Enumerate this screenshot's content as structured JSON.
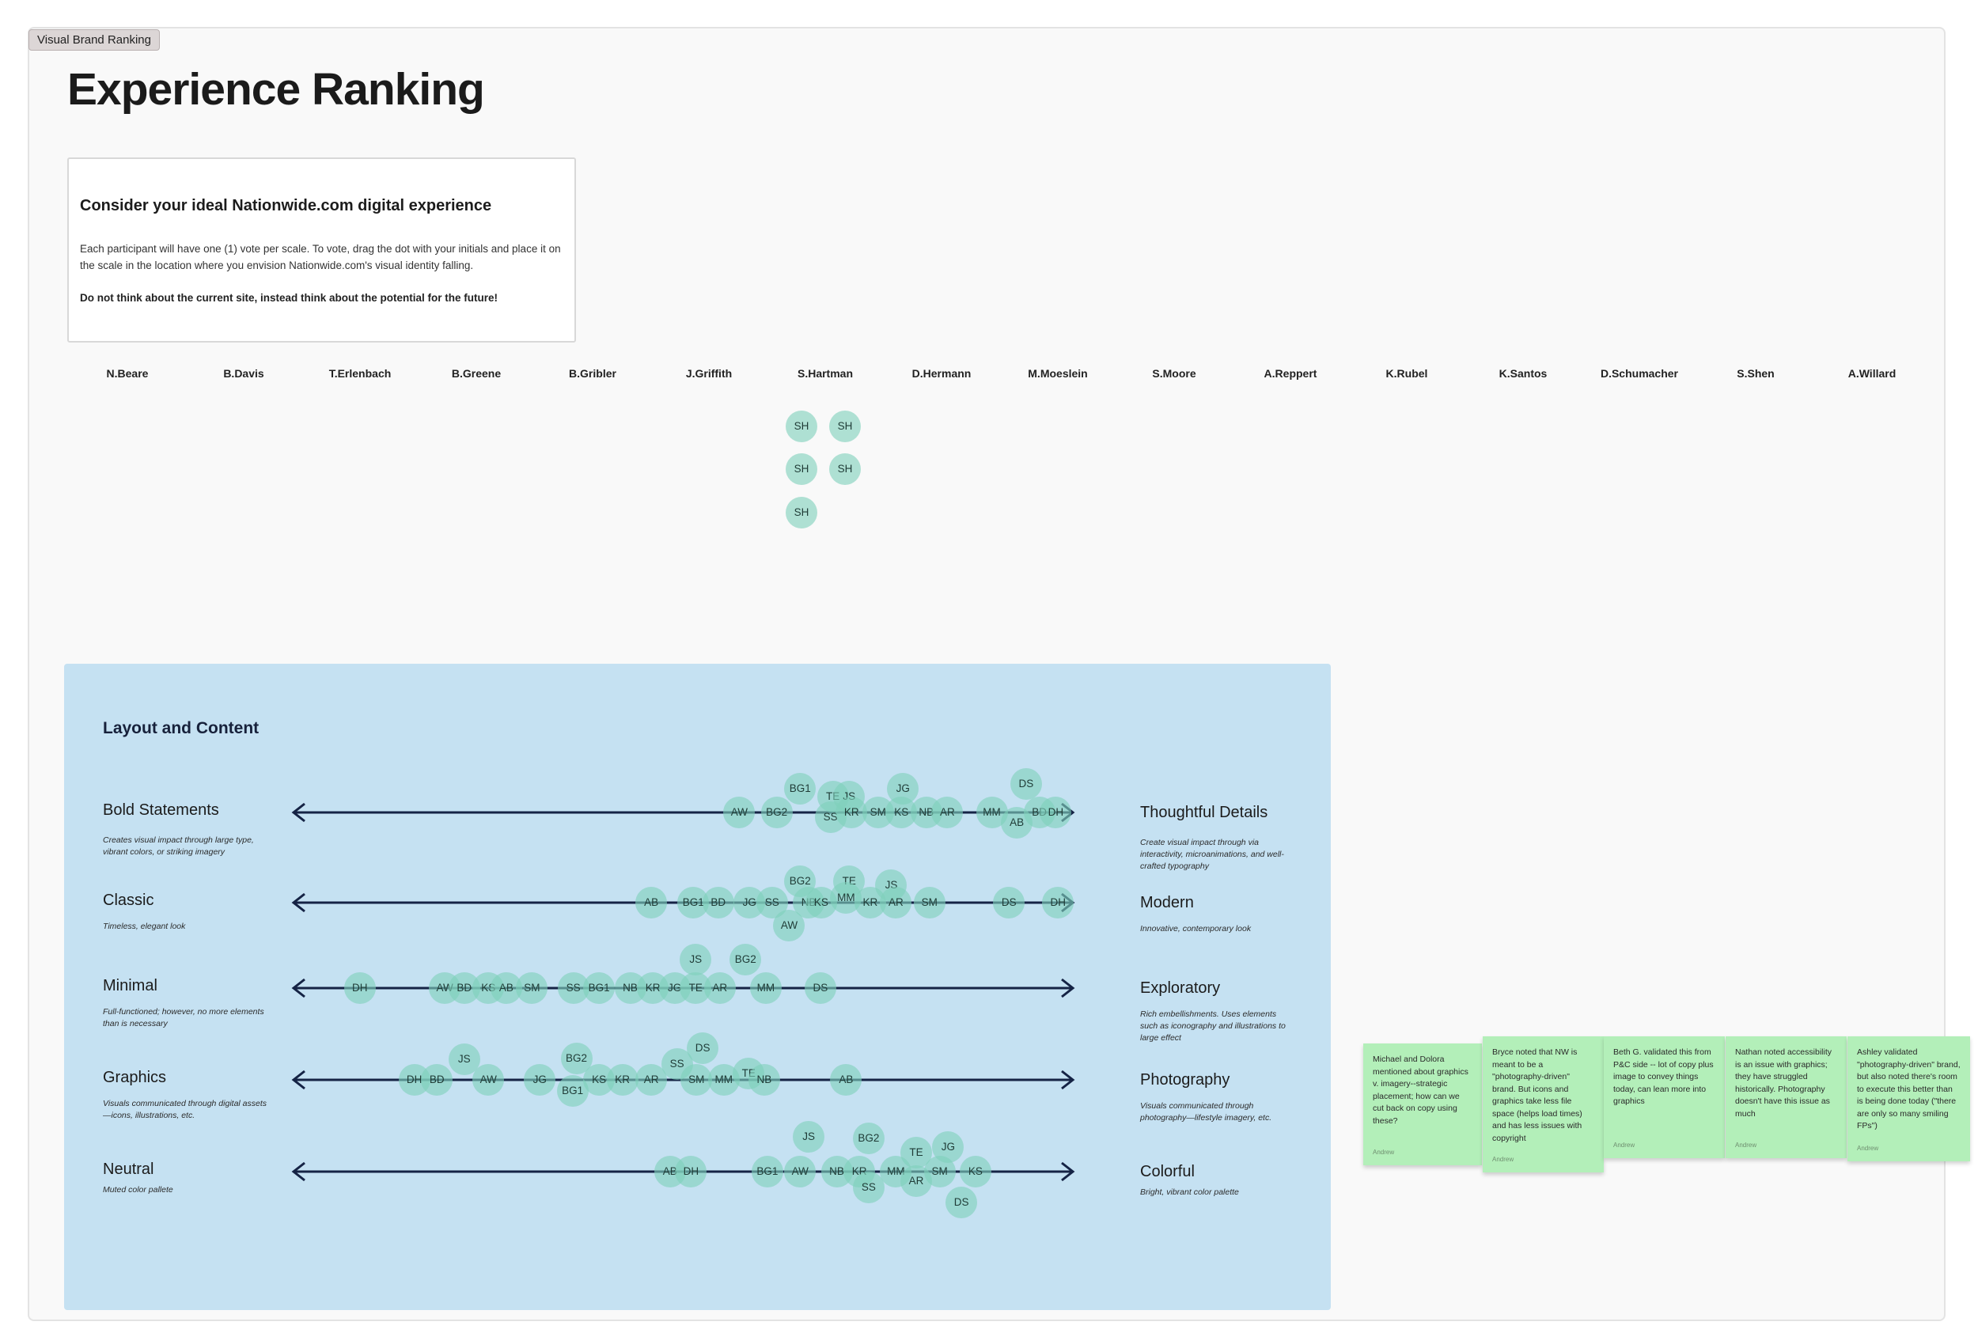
{
  "frame_label": "Visual Brand Ranking",
  "page_title": "Experience Ranking",
  "instructions": {
    "heading": "Consider your ideal Nationwide.com digital experience",
    "body": "Each participant will have one (1) vote per scale. To vote, drag the dot with your initials and place it on the scale in the location where you envision Nationwide.com's visual identity falling.",
    "note": "Do not think about the current site, instead think about the potential for the future!"
  },
  "participants": [
    "N.Beare",
    "B.Davis",
    "T.Erlenbach",
    "B.Greene",
    "B.Gribler",
    "J.Griffith",
    "S.Hartman",
    "D.Hermann",
    "M.Moeslein",
    "S.Moore",
    "A.Reppert",
    "K.Rubel",
    "K.Santos",
    "D.Schumacher",
    "S.Shen",
    "A.Willard"
  ],
  "unplaced_dots": {
    "initials": "SH",
    "count": 5
  },
  "panel": {
    "title": "Layout and Content",
    "scales": [
      {
        "left_title": "Bold Statements",
        "left_desc": "Creates visual impact through large type, vibrant colors, or striking imagery",
        "right_title": "Thoughtful Details",
        "right_desc": "Create visual impact through via interactivity, microanimations, and well-crafted typography",
        "votes": [
          {
            "initials": "AW",
            "value": 0.572
          },
          {
            "initials": "BG2",
            "value": 0.62
          },
          {
            "initials": "BG1",
            "value": 0.65
          },
          {
            "initials": "SS",
            "value": 0.689
          },
          {
            "initials": "TE",
            "value": 0.692
          },
          {
            "initials": "JS",
            "value": 0.713
          },
          {
            "initials": "KR",
            "value": 0.716
          },
          {
            "initials": "SM",
            "value": 0.75
          },
          {
            "initials": "JG",
            "value": 0.782
          },
          {
            "initials": "KS",
            "value": 0.78
          },
          {
            "initials": "NB",
            "value": 0.812
          },
          {
            "initials": "AR",
            "value": 0.839
          },
          {
            "initials": "MM",
            "value": 0.896
          },
          {
            "initials": "DS",
            "value": 0.94
          },
          {
            "initials": "AB",
            "value": 0.928
          },
          {
            "initials": "BD",
            "value": 0.957
          },
          {
            "initials": "DH",
            "value": 0.978
          }
        ]
      },
      {
        "left_title": "Classic",
        "left_desc": "Timeless, elegant look",
        "right_title": "Modern",
        "right_desc": "Innovative, contemporary look",
        "votes": [
          {
            "initials": "AB",
            "value": 0.459
          },
          {
            "initials": "BG1",
            "value": 0.513
          },
          {
            "initials": "BD",
            "value": 0.545
          },
          {
            "initials": "JG",
            "value": 0.585
          },
          {
            "initials": "SS",
            "value": 0.614
          },
          {
            "initials": "BG2",
            "value": 0.65
          },
          {
            "initials": "AW",
            "value": 0.636
          },
          {
            "initials": "NB",
            "value": 0.661
          },
          {
            "initials": "KS",
            "value": 0.677
          },
          {
            "initials": "TE",
            "value": 0.713
          },
          {
            "initials": "MM",
            "value": 0.709
          },
          {
            "initials": "KR",
            "value": 0.74
          },
          {
            "initials": "JS",
            "value": 0.767
          },
          {
            "initials": "AR",
            "value": 0.773
          },
          {
            "initials": "SM",
            "value": 0.816
          },
          {
            "initials": "DS",
            "value": 0.918
          },
          {
            "initials": "DH",
            "value": 0.981
          }
        ]
      },
      {
        "left_title": "Minimal",
        "left_desc": "Full-functioned; however, no more elements than is necessary",
        "right_title": "Exploratory",
        "right_desc": "Rich embellishments. Uses elements such as iconography and illustrations to large effect",
        "votes": [
          {
            "initials": "DH",
            "value": 0.085
          },
          {
            "initials": "AW",
            "value": 0.194
          },
          {
            "initials": "BD",
            "value": 0.219
          },
          {
            "initials": "KS",
            "value": 0.25
          },
          {
            "initials": "AB",
            "value": 0.273
          },
          {
            "initials": "SM",
            "value": 0.306
          },
          {
            "initials": "SS",
            "value": 0.359
          },
          {
            "initials": "BG1",
            "value": 0.392
          },
          {
            "initials": "NB",
            "value": 0.432
          },
          {
            "initials": "KR",
            "value": 0.461
          },
          {
            "initials": "JG",
            "value": 0.489
          },
          {
            "initials": "JS",
            "value": 0.516
          },
          {
            "initials": "TE",
            "value": 0.516
          },
          {
            "initials": "AR",
            "value": 0.547
          },
          {
            "initials": "BG2",
            "value": 0.58
          },
          {
            "initials": "MM",
            "value": 0.606
          },
          {
            "initials": "DS",
            "value": 0.676
          }
        ]
      },
      {
        "left_title": "Graphics",
        "left_desc": "Visuals communicated through digital assets—icons, illustrations, etc.",
        "right_title": "Photography",
        "right_desc": "Visuals communicated through photography—lifestyle imagery, etc.",
        "votes": [
          {
            "initials": "DH",
            "value": 0.155
          },
          {
            "initials": "BD",
            "value": 0.184
          },
          {
            "initials": "JS",
            "value": 0.219
          },
          {
            "initials": "AW",
            "value": 0.25
          },
          {
            "initials": "JG",
            "value": 0.316
          },
          {
            "initials": "BG2",
            "value": 0.363
          },
          {
            "initials": "BG1",
            "value": 0.358
          },
          {
            "initials": "KS",
            "value": 0.392
          },
          {
            "initials": "KR",
            "value": 0.422
          },
          {
            "initials": "AR",
            "value": 0.459
          },
          {
            "initials": "SS",
            "value": 0.492
          },
          {
            "initials": "DS",
            "value": 0.525
          },
          {
            "initials": "SM",
            "value": 0.517
          },
          {
            "initials": "MM",
            "value": 0.552
          },
          {
            "initials": "TE",
            "value": 0.584
          },
          {
            "initials": "NB",
            "value": 0.604
          },
          {
            "initials": "AB",
            "value": 0.709
          }
        ]
      },
      {
        "left_title": "Neutral",
        "left_desc": "Muted color pallete",
        "right_title": "Colorful",
        "right_desc": "Bright, vibrant color palette",
        "votes": [
          {
            "initials": "AB",
            "value": 0.483
          },
          {
            "initials": "DH",
            "value": 0.51
          },
          {
            "initials": "BG1",
            "value": 0.608
          },
          {
            "initials": "AW",
            "value": 0.65
          },
          {
            "initials": "JS",
            "value": 0.661
          },
          {
            "initials": "NB",
            "value": 0.697
          },
          {
            "initials": "BG2",
            "value": 0.738
          },
          {
            "initials": "KR",
            "value": 0.726
          },
          {
            "initials": "SS",
            "value": 0.738
          },
          {
            "initials": "MM",
            "value": 0.773
          },
          {
            "initials": "TE",
            "value": 0.799
          },
          {
            "initials": "AR",
            "value": 0.799
          },
          {
            "initials": "JG",
            "value": 0.84
          },
          {
            "initials": "SM",
            "value": 0.829
          },
          {
            "initials": "KS",
            "value": 0.875
          },
          {
            "initials": "DS",
            "value": 0.857
          }
        ]
      }
    ]
  },
  "sticky_notes": [
    {
      "text": "Michael and Dolora mentioned about graphics v. imagery--strategic placement; how can we cut back on copy using these?",
      "author": "Andrew"
    },
    {
      "text": "Bryce noted that NW is meant to be a \"photography-driven\" brand. But icons and graphics take less file space (helps load times) and has less issues with copyright",
      "author": "Andrew"
    },
    {
      "text": "Beth G. validated this from P&C side -- lot of copy plus image to convey things today, can lean more into graphics",
      "author": "Andrew"
    },
    {
      "text": "Nathan noted accessibility is an issue with graphics; they have struggled historically. Photography doesn't have this issue as much",
      "author": "Andrew"
    },
    {
      "text": "Ashley validated \"photography-driven\" brand, but also noted there's room to execute this better than is being done today (\"there are only so many smiling FPs\")",
      "author": "Andrew"
    }
  ]
}
